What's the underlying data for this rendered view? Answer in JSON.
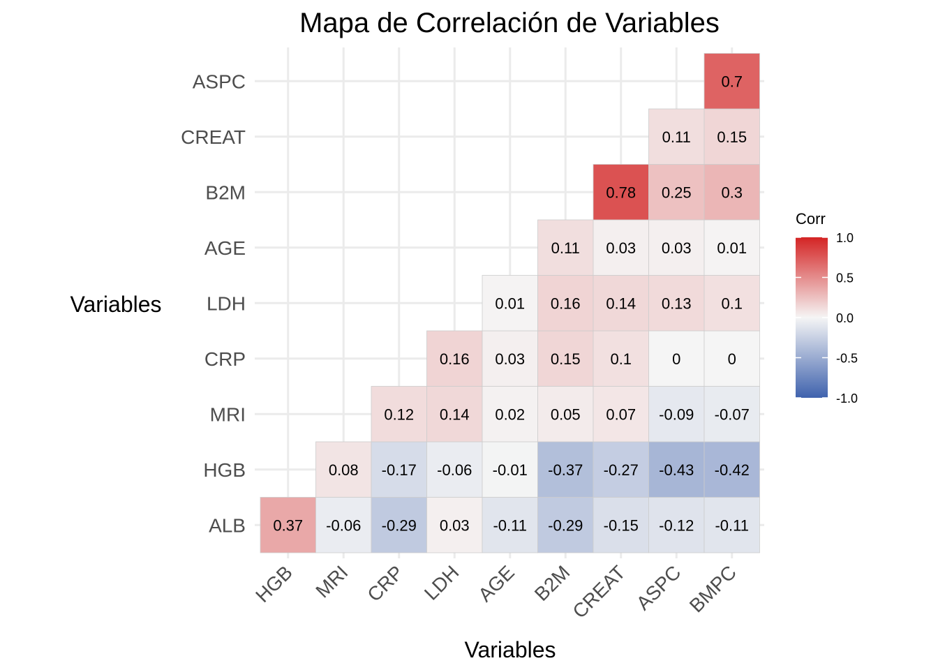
{
  "chart_data": {
    "type": "heatmap",
    "title": "Mapa de Correlación de Variables",
    "xlabel": "Variables",
    "ylabel": "Variables",
    "x_categories": [
      "HGB",
      "MRI",
      "CRP",
      "LDH",
      "AGE",
      "B2M",
      "CREAT",
      "ASPC",
      "BMPC"
    ],
    "y_categories": [
      "ALB",
      "HGB",
      "MRI",
      "CRP",
      "LDH",
      "AGE",
      "B2M",
      "CREAT",
      "ASPC"
    ],
    "cells": [
      {
        "y": "ALB",
        "x": "HGB",
        "value": 0.37,
        "label": "0.37"
      },
      {
        "y": "ALB",
        "x": "MRI",
        "value": -0.06,
        "label": "-0.06"
      },
      {
        "y": "ALB",
        "x": "CRP",
        "value": -0.29,
        "label": "-0.29"
      },
      {
        "y": "ALB",
        "x": "LDH",
        "value": 0.03,
        "label": "0.03"
      },
      {
        "y": "ALB",
        "x": "AGE",
        "value": -0.11,
        "label": "-0.11"
      },
      {
        "y": "ALB",
        "x": "B2M",
        "value": -0.29,
        "label": "-0.29"
      },
      {
        "y": "ALB",
        "x": "CREAT",
        "value": -0.15,
        "label": "-0.15"
      },
      {
        "y": "ALB",
        "x": "ASPC",
        "value": -0.12,
        "label": "-0.12"
      },
      {
        "y": "ALB",
        "x": "BMPC",
        "value": -0.11,
        "label": "-0.11"
      },
      {
        "y": "HGB",
        "x": "MRI",
        "value": 0.08,
        "label": "0.08"
      },
      {
        "y": "HGB",
        "x": "CRP",
        "value": -0.17,
        "label": "-0.17"
      },
      {
        "y": "HGB",
        "x": "LDH",
        "value": -0.06,
        "label": "-0.06"
      },
      {
        "y": "HGB",
        "x": "AGE",
        "value": -0.01,
        "label": "-0.01"
      },
      {
        "y": "HGB",
        "x": "B2M",
        "value": -0.37,
        "label": "-0.37"
      },
      {
        "y": "HGB",
        "x": "CREAT",
        "value": -0.27,
        "label": "-0.27"
      },
      {
        "y": "HGB",
        "x": "ASPC",
        "value": -0.43,
        "label": "-0.43"
      },
      {
        "y": "HGB",
        "x": "BMPC",
        "value": -0.42,
        "label": "-0.42"
      },
      {
        "y": "MRI",
        "x": "CRP",
        "value": 0.12,
        "label": "0.12"
      },
      {
        "y": "MRI",
        "x": "LDH",
        "value": 0.14,
        "label": "0.14"
      },
      {
        "y": "MRI",
        "x": "AGE",
        "value": 0.02,
        "label": "0.02"
      },
      {
        "y": "MRI",
        "x": "B2M",
        "value": 0.05,
        "label": "0.05"
      },
      {
        "y": "MRI",
        "x": "CREAT",
        "value": 0.07,
        "label": "0.07"
      },
      {
        "y": "MRI",
        "x": "ASPC",
        "value": -0.09,
        "label": "-0.09"
      },
      {
        "y": "MRI",
        "x": "BMPC",
        "value": -0.07,
        "label": "-0.07"
      },
      {
        "y": "CRP",
        "x": "LDH",
        "value": 0.16,
        "label": "0.16"
      },
      {
        "y": "CRP",
        "x": "AGE",
        "value": 0.03,
        "label": "0.03"
      },
      {
        "y": "CRP",
        "x": "B2M",
        "value": 0.15,
        "label": "0.15"
      },
      {
        "y": "CRP",
        "x": "CREAT",
        "value": 0.1,
        "label": "0.1"
      },
      {
        "y": "CRP",
        "x": "ASPC",
        "value": 0,
        "label": "0"
      },
      {
        "y": "CRP",
        "x": "BMPC",
        "value": 0,
        "label": "0"
      },
      {
        "y": "LDH",
        "x": "AGE",
        "value": 0.01,
        "label": "0.01"
      },
      {
        "y": "LDH",
        "x": "B2M",
        "value": 0.16,
        "label": "0.16"
      },
      {
        "y": "LDH",
        "x": "CREAT",
        "value": 0.14,
        "label": "0.14"
      },
      {
        "y": "LDH",
        "x": "ASPC",
        "value": 0.13,
        "label": "0.13"
      },
      {
        "y": "LDH",
        "x": "BMPC",
        "value": 0.1,
        "label": "0.1"
      },
      {
        "y": "AGE",
        "x": "B2M",
        "value": 0.11,
        "label": "0.11"
      },
      {
        "y": "AGE",
        "x": "CREAT",
        "value": 0.03,
        "label": "0.03"
      },
      {
        "y": "AGE",
        "x": "ASPC",
        "value": 0.03,
        "label": "0.03"
      },
      {
        "y": "AGE",
        "x": "BMPC",
        "value": 0.01,
        "label": "0.01"
      },
      {
        "y": "B2M",
        "x": "CREAT",
        "value": 0.78,
        "label": "0.78"
      },
      {
        "y": "B2M",
        "x": "ASPC",
        "value": 0.25,
        "label": "0.25"
      },
      {
        "y": "B2M",
        "x": "BMPC",
        "value": 0.3,
        "label": "0.3"
      },
      {
        "y": "CREAT",
        "x": "ASPC",
        "value": 0.11,
        "label": "0.11"
      },
      {
        "y": "CREAT",
        "x": "BMPC",
        "value": 0.15,
        "label": "0.15"
      },
      {
        "y": "ASPC",
        "x": "BMPC",
        "value": 0.7,
        "label": "0.7"
      }
    ],
    "legend": {
      "title": "Corr",
      "position": "right",
      "ticks": [
        "1.0",
        "0.5",
        "0.0",
        "-0.5",
        "-1.0"
      ],
      "tick_values": [
        1.0,
        0.5,
        0.0,
        -0.5,
        -1.0
      ],
      "range": [
        -1,
        1
      ]
    },
    "colors": {
      "low": "#3f62ad",
      "mid": "#f5f5f5",
      "high": "#d42424",
      "grid": "#ebebeb",
      "cell_border": "#cccccc"
    },
    "grid": true
  }
}
